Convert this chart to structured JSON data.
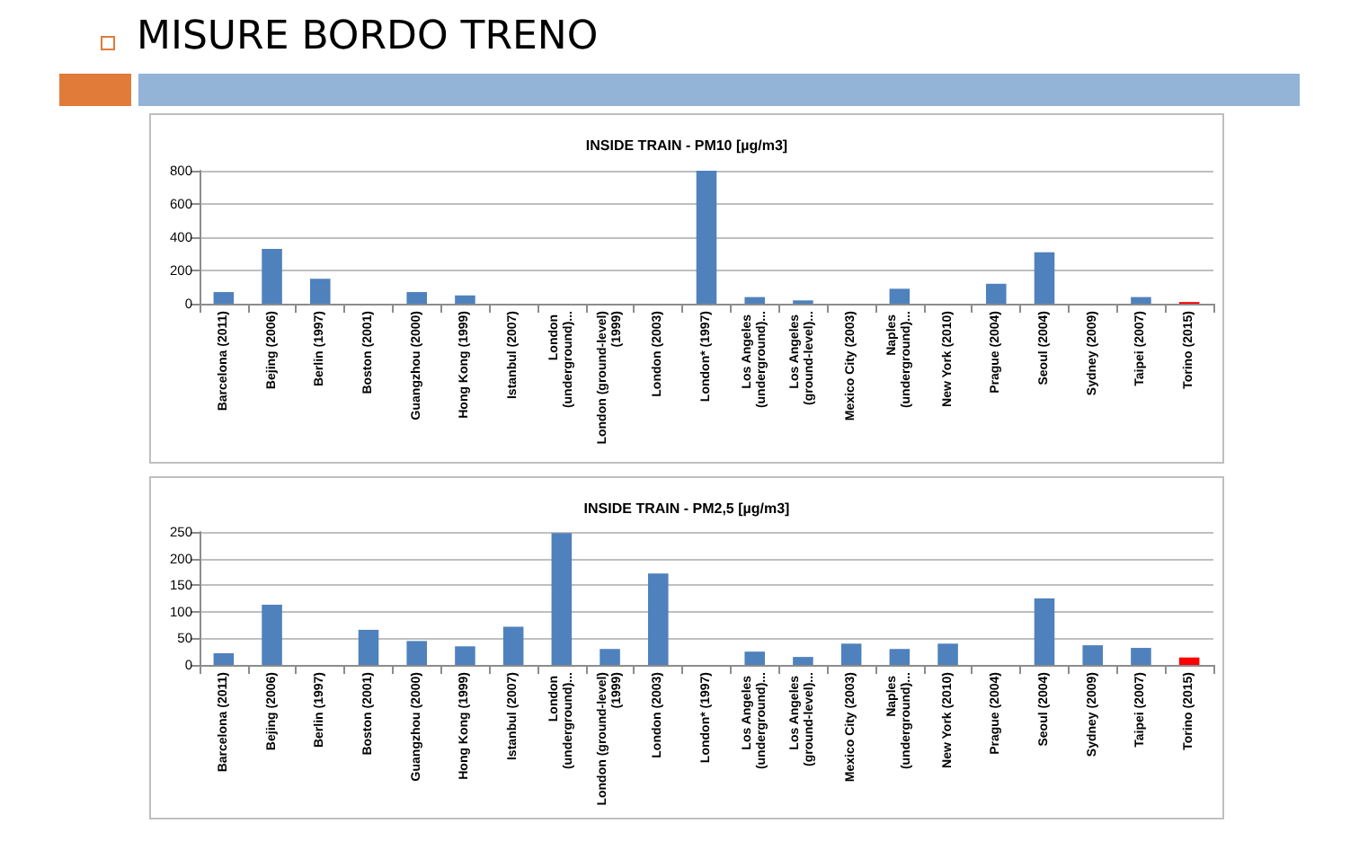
{
  "chart_data": [
    {
      "type": "bar",
      "title": "INSIDE TRAIN - PM10 [µg/m3]",
      "annotations": [
        "MISURE BORDO TRENO"
      ],
      "categories": [
        "Barcelona (2011)",
        "Bejing (2006)",
        "Berlin (1997)",
        "Boston (2001)",
        "Guangzhou (2000)",
        "Hong Kong (1999)",
        "Istanbul (2007)",
        "London (underground)...",
        "London (ground-level) (1999)",
        "London (2003)",
        "London* (1997)",
        "Los Angeles (underground)...",
        "Los Angeles (ground-level)...",
        "Mexico City (2003)",
        "Naples (underground)...",
        "New York (2010)",
        "Prague (2004)",
        "Seoul (2004)",
        "Sydney (2009)",
        "Taipei (2007)",
        "Torino (2015)"
      ],
      "values": [
        70,
        330,
        150,
        null,
        70,
        50,
        null,
        null,
        null,
        null,
        800,
        40,
        20,
        null,
        90,
        null,
        120,
        310,
        null,
        40,
        10
      ],
      "colors": [
        "#4f81bd",
        "#4f81bd",
        "#4f81bd",
        "#4f81bd",
        "#4f81bd",
        "#4f81bd",
        "#4f81bd",
        "#4f81bd",
        "#4f81bd",
        "#4f81bd",
        "#4f81bd",
        "#4f81bd",
        "#4f81bd",
        "#4f81bd",
        "#4f81bd",
        "#4f81bd",
        "#4f81bd",
        "#4f81bd",
        "#4f81bd",
        "#4f81bd",
        "#ff0000"
      ],
      "ylim": [
        0,
        800
      ],
      "yticks": [
        0,
        200,
        400,
        600,
        800
      ],
      "grid": "y"
    },
    {
      "type": "bar",
      "title": "INSIDE TRAIN - PM2,5 [µg/m3]",
      "categories": [
        "Barcelona (2011)",
        "Bejing (2006)",
        "Berlin (1997)",
        "Boston (2001)",
        "Guangzhou (2000)",
        "Hong Kong (1999)",
        "Istanbul (2007)",
        "London (underground)...",
        "London (ground-level) (1999)",
        "London (2003)",
        "London* (1997)",
        "Los Angeles (underground)...",
        "Los Angeles (ground-level)...",
        "Mexico City (2003)",
        "Naples (underground)...",
        "New York (2010)",
        "Prague (2004)",
        "Seoul (2004)",
        "Sydney (2009)",
        "Taipei (2007)",
        "Torino (2015)"
      ],
      "values": [
        22,
        113,
        null,
        66,
        45,
        35,
        72,
        248,
        30,
        172,
        null,
        25,
        15,
        40,
        30,
        40,
        null,
        125,
        37,
        32,
        14
      ],
      "colors": [
        "#4f81bd",
        "#4f81bd",
        "#4f81bd",
        "#4f81bd",
        "#4f81bd",
        "#4f81bd",
        "#4f81bd",
        "#4f81bd",
        "#4f81bd",
        "#4f81bd",
        "#4f81bd",
        "#4f81bd",
        "#4f81bd",
        "#4f81bd",
        "#4f81bd",
        "#4f81bd",
        "#4f81bd",
        "#4f81bd",
        "#4f81bd",
        "#4f81bd",
        "#ff0000"
      ],
      "ylim": [
        0,
        250
      ],
      "yticks": [
        0,
        50,
        100,
        150,
        200,
        250
      ],
      "grid": "y"
    }
  ]
}
